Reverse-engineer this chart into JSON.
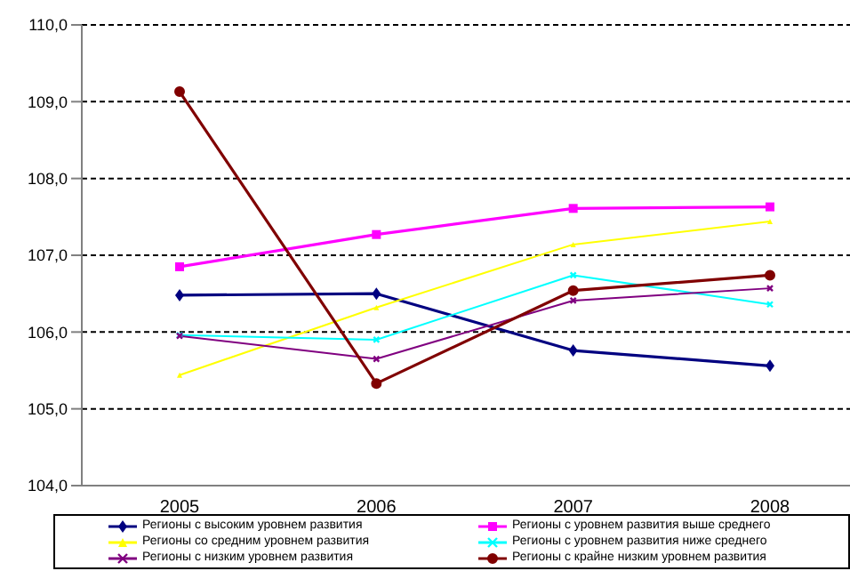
{
  "chart_data": {
    "type": "line",
    "categories": [
      "2005",
      "2006",
      "2007",
      "2008"
    ],
    "ylim": [
      104,
      110
    ],
    "yticks": [
      {
        "value": 104,
        "label": "104,0"
      },
      {
        "value": 105,
        "label": "105,0"
      },
      {
        "value": 106,
        "label": "106,0"
      },
      {
        "value": 107,
        "label": "107,0"
      },
      {
        "value": 108,
        "label": "108,0"
      },
      {
        "value": 109,
        "label": "109,0"
      },
      {
        "value": 110,
        "label": "110,0"
      }
    ],
    "grid": "y",
    "legend": "bottom",
    "line_style": "solid",
    "series": [
      {
        "name": "Регионы с высоким уровнем развития",
        "color": "#000080",
        "marker": "diamond",
        "values": [
          106.48,
          106.5,
          105.76,
          105.56
        ]
      },
      {
        "name": "Регионы с уровнем развития выше среднего",
        "color": "#ff00ff",
        "marker": "square",
        "values": [
          106.85,
          107.27,
          107.61,
          107.63
        ]
      },
      {
        "name": "Регионы со средним уровнем развития",
        "color": "#ffff00",
        "marker": "triangle",
        "values": [
          105.44,
          106.32,
          107.14,
          107.44
        ]
      },
      {
        "name": "Регионы с уровнем развития ниже среднего",
        "color": "#00ffff",
        "marker": "cross",
        "values": [
          105.96,
          105.9,
          106.74,
          106.36
        ]
      },
      {
        "name": "Регионы с низким уровнем развития",
        "color": "#800080",
        "marker": "cross",
        "values": [
          105.95,
          105.65,
          106.41,
          106.57
        ]
      },
      {
        "name": "Регионы с крайне низким уровнем развития",
        "color": "#800000",
        "marker": "circle",
        "values": [
          109.13,
          105.33,
          106.54,
          106.74
        ]
      }
    ]
  }
}
